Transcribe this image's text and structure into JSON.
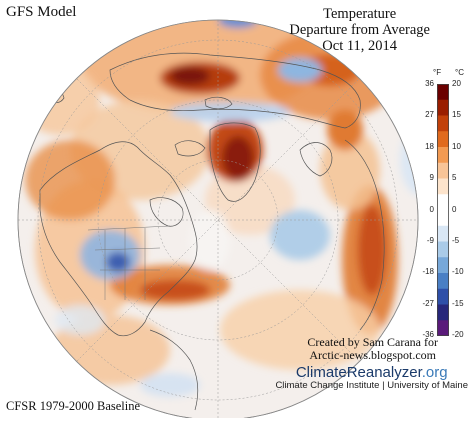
{
  "header": {
    "model": "GFS Model",
    "title_line1": "Temperature",
    "title_line2": "Departure from Average",
    "date": "Oct 11, 2014"
  },
  "footer": {
    "baseline": "CFSR 1979-2000 Baseline",
    "credit_line1": "Created by Sam Carana for",
    "credit_line2": "Arctic-news.blogspot.com",
    "reanalyzer_name": "ClimateReanalyzer",
    "reanalyzer_domain": ".org",
    "institute": "Climate Change Institute | University of Maine"
  },
  "legend": {
    "unit_f": "°F",
    "unit_c": "°C",
    "ticks_f": [
      "36",
      "27",
      "18",
      "9",
      "0",
      "-9",
      "-18",
      "-27",
      "-36"
    ],
    "ticks_c": [
      "20",
      "15",
      "10",
      "5",
      "0",
      "-5",
      "-10",
      "-15",
      "-20"
    ],
    "colors": [
      "#6b0000",
      "#9a1e00",
      "#c2410a",
      "#e06a1e",
      "#f29a52",
      "#f8c497",
      "#fde4cc",
      "#ffffff",
      "#ffffff",
      "#d9e7f5",
      "#aacbe8",
      "#77a8d9",
      "#4a7fc4",
      "#2e4fa8",
      "#27277a",
      "#5a1a7a"
    ]
  },
  "map": {
    "projection": "north-polar",
    "colors": {
      "ocean_neutral": "#f3f0ee",
      "warm_light": "#f8c497",
      "warm_mid": "#ef9a52",
      "warm_strong": "#d55a1a",
      "warm_extreme": "#8a1a0a",
      "cool_light": "#cfe0f2",
      "cool_mid": "#8eb6e0",
      "cool_strong": "#3c5fb0",
      "outline": "#555555"
    }
  }
}
